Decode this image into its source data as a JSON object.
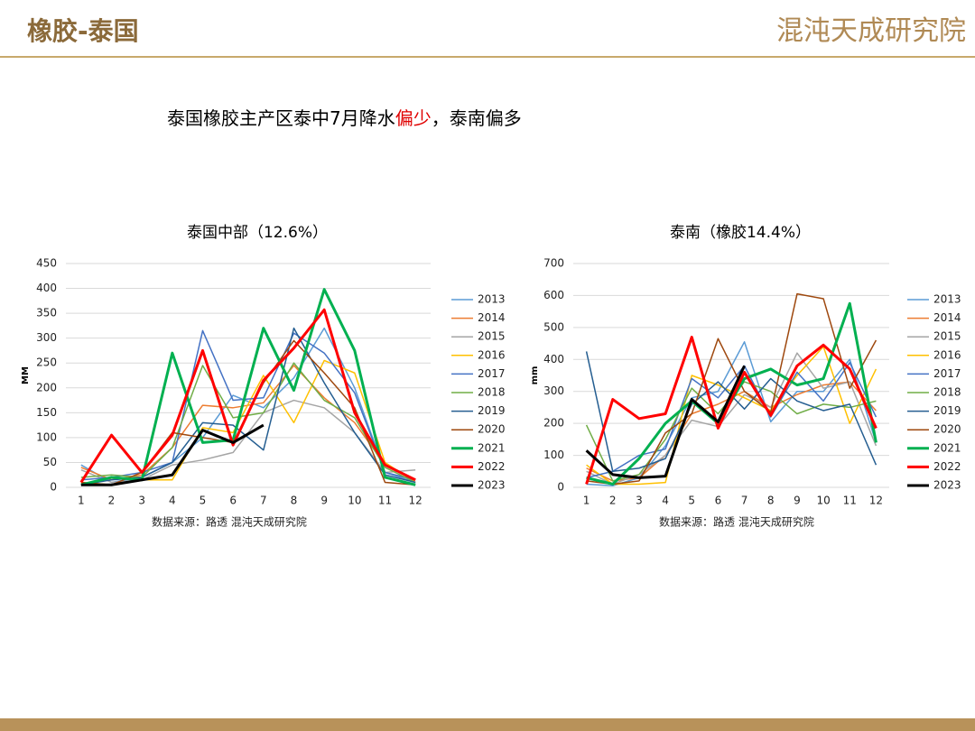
{
  "header": {
    "title": "橡胶-泰国",
    "logo": "混沌天成研究院"
  },
  "subtitle": [
    {
      "text": "泰国橡胶主产区泰中7月降水",
      "color": "#000000"
    },
    {
      "text": "偏少",
      "color": "#e00000"
    },
    {
      "text": "，泰南偏多",
      "color": "#000000"
    }
  ],
  "chart_data": [
    {
      "type": "line",
      "title": "泰国中部（12.6%）",
      "y_label": "MM",
      "source": "数据来源：路透 混沌天成研究院",
      "categories": [
        "1",
        "2",
        "3",
        "4",
        "5",
        "6",
        "7",
        "8",
        "9",
        "10",
        "11",
        "12"
      ],
      "ylim": [
        0,
        450
      ],
      "yticks": [
        0,
        50,
        100,
        150,
        200,
        250,
        300,
        350,
        400,
        450
      ],
      "grid": true,
      "legend": "right",
      "series": [
        {
          "name": "2013",
          "color": "#5b9bd5",
          "width": 1.5,
          "values": [
            45,
            10,
            20,
            50,
            100,
            185,
            160,
            220,
            320,
            200,
            30,
            10
          ]
        },
        {
          "name": "2014",
          "color": "#ed7d31",
          "width": 1.5,
          "values": [
            40,
            15,
            25,
            80,
            165,
            160,
            170,
            245,
            180,
            130,
            45,
            15
          ]
        },
        {
          "name": "2015",
          "color": "#a5a5a5",
          "width": 1.5,
          "values": [
            35,
            10,
            15,
            45,
            55,
            70,
            150,
            175,
            160,
            110,
            30,
            35
          ]
        },
        {
          "name": "2016",
          "color": "#ffc000",
          "width": 1.5,
          "values": [
            10,
            5,
            15,
            15,
            120,
            110,
            225,
            130,
            255,
            230,
            50,
            10
          ]
        },
        {
          "name": "2017",
          "color": "#4472c4",
          "width": 1.5,
          "values": [
            15,
            20,
            30,
            50,
            315,
            175,
            180,
            310,
            270,
            190,
            30,
            15
          ]
        },
        {
          "name": "2018",
          "color": "#70ad47",
          "width": 1.5,
          "values": [
            20,
            25,
            20,
            80,
            245,
            140,
            150,
            250,
            175,
            140,
            40,
            10
          ]
        },
        {
          "name": "2019",
          "color": "#255e91",
          "width": 1.5,
          "values": [
            5,
            15,
            20,
            50,
            130,
            125,
            75,
            320,
            210,
            110,
            25,
            10
          ]
        },
        {
          "name": "2020",
          "color": "#9e480e",
          "width": 1.5,
          "values": [
            10,
            5,
            30,
            110,
            100,
            90,
            210,
            295,
            230,
            160,
            10,
            5
          ]
        },
        {
          "name": "2021",
          "color": "#00b050",
          "width": 3,
          "values": [
            5,
            20,
            15,
            270,
            90,
            95,
            320,
            195,
            398,
            275,
            20,
            5
          ]
        },
        {
          "name": "2022",
          "color": "#ff0000",
          "width": 3,
          "values": [
            10,
            105,
            30,
            105,
            275,
            85,
            215,
            280,
            357,
            150,
            45,
            15
          ]
        },
        {
          "name": "2023",
          "color": "#000000",
          "width": 3,
          "values": [
            5,
            5,
            15,
            25,
            115,
            90,
            125,
            null,
            null,
            null,
            null,
            null
          ]
        }
      ]
    },
    {
      "type": "line",
      "title": "泰南（橡胶14.4%）",
      "y_label": "mm",
      "source": "数据来源：路透 混沌天成研究院",
      "categories": [
        "1",
        "2",
        "3",
        "4",
        "5",
        "6",
        "7",
        "8",
        "9",
        "10",
        "11",
        "12"
      ],
      "ylim": [
        0,
        700
      ],
      "yticks": [
        0,
        100,
        200,
        300,
        400,
        500,
        600,
        700
      ],
      "grid": true,
      "legend": "right",
      "series": [
        {
          "name": "2013",
          "color": "#5b9bd5",
          "width": 1.5,
          "values": [
            10,
            5,
            30,
            130,
            280,
            300,
            455,
            205,
            300,
            300,
            400,
            140
          ]
        },
        {
          "name": "2014",
          "color": "#ed7d31",
          "width": 1.5,
          "values": [
            60,
            20,
            30,
            100,
            230,
            260,
            300,
            250,
            290,
            320,
            330,
            240
          ]
        },
        {
          "name": "2015",
          "color": "#a5a5a5",
          "width": 1.5,
          "values": [
            50,
            10,
            40,
            100,
            210,
            190,
            290,
            250,
            420,
            310,
            330,
            130
          ]
        },
        {
          "name": "2016",
          "color": "#ffc000",
          "width": 1.5,
          "values": [
            70,
            10,
            10,
            15,
            350,
            320,
            280,
            240,
            350,
            440,
            200,
            370
          ]
        },
        {
          "name": "2017",
          "color": "#4472c4",
          "width": 1.5,
          "values": [
            30,
            50,
            100,
            120,
            340,
            280,
            380,
            220,
            360,
            270,
            390,
            220
          ]
        },
        {
          "name": "2018",
          "color": "#70ad47",
          "width": 1.5,
          "values": [
            195,
            20,
            40,
            150,
            310,
            230,
            330,
            300,
            230,
            260,
            250,
            270
          ]
        },
        {
          "name": "2019",
          "color": "#255e91",
          "width": 1.5,
          "values": [
            425,
            50,
            60,
            90,
            260,
            330,
            245,
            340,
            270,
            240,
            260,
            70
          ]
        },
        {
          "name": "2020",
          "color": "#9e480e",
          "width": 1.5,
          "values": [
            20,
            10,
            20,
            170,
            230,
            465,
            300,
            235,
            605,
            590,
            310,
            460
          ]
        },
        {
          "name": "2021",
          "color": "#00b050",
          "width": 3,
          "values": [
            30,
            10,
            90,
            200,
            270,
            200,
            340,
            370,
            320,
            340,
            575,
            140
          ]
        },
        {
          "name": "2022",
          "color": "#ff0000",
          "width": 3,
          "values": [
            10,
            275,
            215,
            230,
            470,
            185,
            360,
            225,
            380,
            445,
            370,
            185
          ]
        },
        {
          "name": "2023",
          "color": "#000000",
          "width": 3,
          "values": [
            115,
            40,
            30,
            35,
            275,
            205,
            380,
            null,
            null,
            null,
            null,
            null
          ]
        }
      ]
    }
  ]
}
